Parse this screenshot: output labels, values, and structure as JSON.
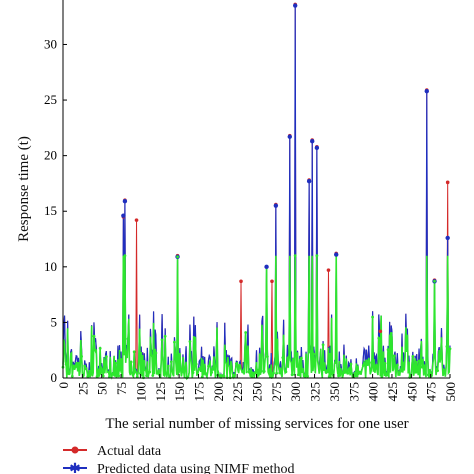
{
  "chart_data": {
    "type": "line",
    "xlabel": "The serial number of missing services for one user",
    "ylabel": "Response time (t)",
    "xlim": [
      0,
      500
    ],
    "ylim": [
      0,
      34
    ],
    "x_ticks": [
      "0",
      "25",
      "50",
      "75",
      "100",
      "125",
      "150",
      "175",
      "200",
      "225",
      "250",
      "275",
      "300",
      "325",
      "350",
      "375",
      "400",
      "425",
      "450",
      "475",
      "500"
    ],
    "y_ticks": [
      "0",
      "5",
      "10",
      "15",
      "20",
      "25",
      "30"
    ],
    "legend_position": "bottom",
    "colors": {
      "actual": "#d42a2a",
      "predicted": "#1f2fbf",
      "green_series": "#2ee62e"
    },
    "series": [
      {
        "name": "Actual data",
        "points": [
          [
            78,
            14.5
          ],
          [
            80,
            16.0
          ],
          [
            95,
            14.2
          ],
          [
            148,
            11.0
          ],
          [
            230,
            8.7
          ],
          [
            263,
            10.0
          ],
          [
            270,
            8.7
          ],
          [
            275,
            15.6
          ],
          [
            293,
            21.8
          ],
          [
            300,
            33.6
          ],
          [
            318,
            17.8
          ],
          [
            322,
            21.4
          ],
          [
            328,
            20.8
          ],
          [
            343,
            9.7
          ],
          [
            353,
            11.2
          ],
          [
            410,
            4.2
          ],
          [
            470,
            25.9
          ],
          [
            480,
            8.8
          ],
          [
            497,
            17.6
          ]
        ]
      },
      {
        "name": "Predicted data using NIMF method",
        "points": [
          [
            78,
            14.6
          ],
          [
            80,
            15.9
          ],
          [
            148,
            10.9
          ],
          [
            263,
            10.0
          ],
          [
            275,
            15.5
          ],
          [
            293,
            21.7
          ],
          [
            300,
            33.5
          ],
          [
            318,
            17.7
          ],
          [
            322,
            21.3
          ],
          [
            328,
            20.7
          ],
          [
            353,
            11.1
          ],
          [
            470,
            25.8
          ],
          [
            480,
            8.7
          ],
          [
            497,
            12.6
          ]
        ]
      }
    ]
  },
  "legend": {
    "actual_label": "Actual data",
    "predicted_label": "Predicted data using NIMF method"
  }
}
